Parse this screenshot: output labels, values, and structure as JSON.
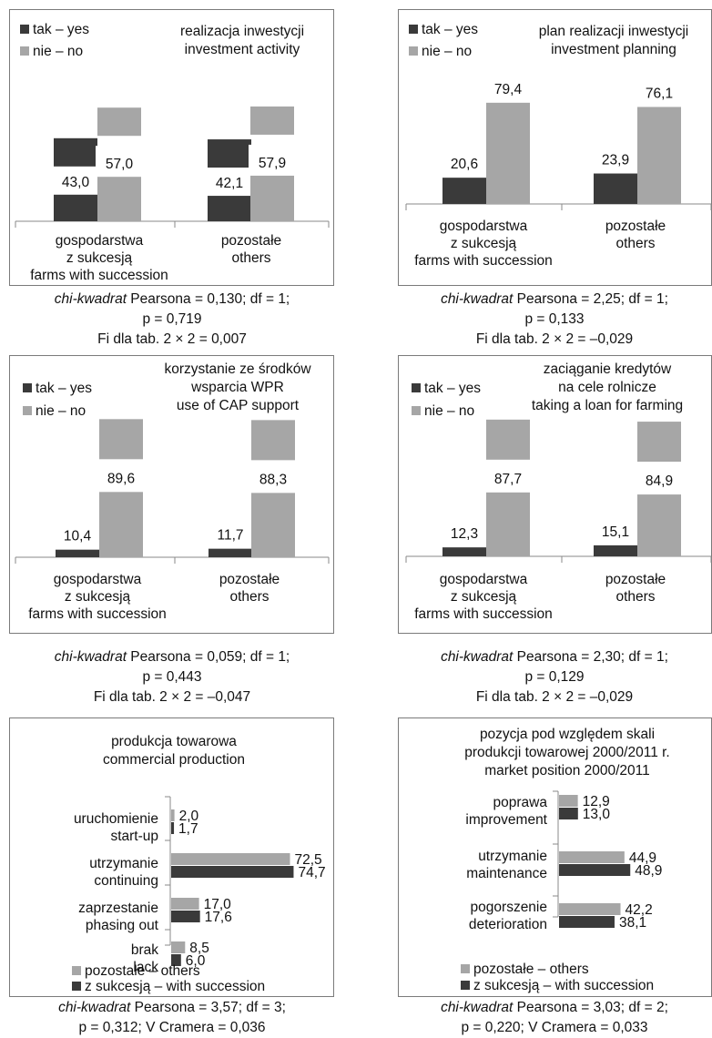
{
  "colors": {
    "yes": "#3a3a3a",
    "no": "#a6a6a6",
    "border": "#7a7a7a"
  },
  "charts": [
    {
      "title": [
        "realizacja inwestycji",
        "investment activity"
      ],
      "legend": [
        "tak – yes",
        "nie – no"
      ],
      "categories": [
        [
          "gospodarstwa",
          "z sukcesją",
          "farms with succession"
        ],
        [
          "pozostałe",
          "others"
        ]
      ],
      "stats": {
        "chi": "chi-kwadrat",
        "line1": " Pearsona = 0,130; df = 1;",
        "line2": "p = 0,719",
        "line3": "Fi dla tab. 2 × 2 = 0,007"
      }
    },
    {
      "title": [
        "plan realizacji inwestycji",
        "investment planning"
      ],
      "legend": [
        "tak – yes",
        "nie – no"
      ],
      "categories": [
        [
          "gospodarstwa",
          "z sukcesją",
          "farms with succession"
        ],
        [
          "pozostałe",
          "others"
        ]
      ],
      "stats": {
        "chi": "chi-kwadrat",
        "line1": " Pearsona = 2,25; df = 1;",
        "line2": "p = 0,133",
        "line3": "Fi dla tab. 2 × 2 = –0,029"
      }
    },
    {
      "title": [
        "korzystanie ze środków",
        "wsparcia WPR",
        "use of CAP support"
      ],
      "legend": [
        "tak – yes",
        "nie – no"
      ],
      "categories": [
        [
          "gospodarstwa",
          "z sukcesją",
          "farms with succession"
        ],
        [
          "pozostałe",
          "others"
        ]
      ],
      "stats": {
        "chi": "chi-kwadrat",
        "line1": " Pearsona = 0,059; df = 1;",
        "line2": "p = 0,443",
        "line3": "Fi dla tab. 2 × 2 = –0,047"
      }
    },
    {
      "title": [
        "zaciąganie kredytów",
        "na cele rolnicze",
        "taking a loan for farming"
      ],
      "legend": [
        "tak – yes",
        "nie – no"
      ],
      "categories": [
        [
          "gospodarstwa",
          "z sukcesją",
          "farms with succession"
        ],
        [
          "pozostałe",
          "others"
        ]
      ],
      "stats": {
        "chi": "chi-kwadrat",
        "line1": " Pearsona = 2,30; df = 1;",
        "line2": "p = 0,129",
        "line3": "Fi dla tab. 2 × 2 = –0,029"
      }
    },
    {
      "title": [
        "produkcja towarowa",
        "commercial production"
      ],
      "legend": [
        "pozostałe – others",
        "z sukcesją – with succession"
      ],
      "categories": [
        [
          "uruchomienie",
          "start-up"
        ],
        [
          "utrzymanie",
          "continuing"
        ],
        [
          "zaprzestanie",
          "phasing out"
        ],
        [
          "brak",
          "lack"
        ]
      ],
      "stats": {
        "chi": "chi-kwadrat",
        "line1": " Pearsona = 3,57; df = 3;",
        "line2": "p = 0,312; V Cramera = 0,036"
      }
    },
    {
      "title": [
        "pozycja pod względem skali",
        "produkcji towarowej 2000/2011 r.",
        "market position 2000/2011"
      ],
      "legend": [
        "pozostałe – others",
        "z sukcesją – with succession"
      ],
      "categories": [
        [
          "poprawa",
          "improvement"
        ],
        [
          "utrzymanie",
          "maintenance"
        ],
        [
          "pogorszenie",
          "deterioration"
        ]
      ],
      "stats": {
        "chi": "chi-kwadrat",
        "line1": " Pearsona = 3,03; df = 2;",
        "line2": "p = 0,220; V Cramera = 0,033"
      }
    }
  ],
  "chart_data": [
    {
      "type": "bar",
      "categories": [
        "gospodarstwa z sukcesją / farms with succession",
        "pozostałe / others"
      ],
      "series": [
        {
          "name": "tak – yes",
          "values": [
            43.0,
            42.1
          ],
          "labels": [
            "43,0",
            "42,1"
          ]
        },
        {
          "name": "nie – no",
          "values": [
            57.0,
            57.9
          ],
          "labels": [
            "57,0",
            "57,9"
          ]
        }
      ]
    },
    {
      "type": "bar",
      "categories": [
        "gospodarstwa z sukcesją / farms with succession",
        "pozostałe / others"
      ],
      "series": [
        {
          "name": "tak – yes",
          "values": [
            20.6,
            23.9
          ],
          "labels": [
            "20,6",
            "23,9"
          ]
        },
        {
          "name": "nie – no",
          "values": [
            79.4,
            76.1
          ],
          "labels": [
            "79,4",
            "76,1"
          ]
        }
      ]
    },
    {
      "type": "bar",
      "categories": [
        "gospodarstwa z sukcesją / farms with succession",
        "pozostałe / others"
      ],
      "series": [
        {
          "name": "tak – yes",
          "values": [
            10.4,
            11.7
          ],
          "labels": [
            "10,4",
            "11,7"
          ]
        },
        {
          "name": "nie – no",
          "values": [
            89.6,
            88.3
          ],
          "labels": [
            "89,6",
            "88,3"
          ]
        }
      ]
    },
    {
      "type": "bar",
      "categories": [
        "gospodarstwa z sukcesją / farms with succession",
        "pozostałe / others"
      ],
      "series": [
        {
          "name": "tak – yes",
          "values": [
            12.3,
            15.1
          ],
          "labels": [
            "12,3",
            "15,1"
          ]
        },
        {
          "name": "nie – no",
          "values": [
            87.7,
            84.9
          ],
          "labels": [
            "87,7",
            "84,9"
          ]
        }
      ]
    },
    {
      "type": "bar",
      "orientation": "horizontal",
      "categories": [
        "uruchomienie / start-up",
        "utrzymanie / continuing",
        "zaprzestanie / phasing out",
        "brak / lack"
      ],
      "series": [
        {
          "name": "pozostałe – others",
          "values": [
            2.0,
            72.5,
            17.0,
            8.5
          ],
          "labels": [
            "2,0",
            "72,5",
            "17,0",
            "8,5"
          ]
        },
        {
          "name": "z sukcesją – with succession",
          "values": [
            1.7,
            74.7,
            17.6,
            6.0
          ],
          "labels": [
            "1,7",
            "74,7",
            "17,6",
            "6,0"
          ]
        }
      ]
    },
    {
      "type": "bar",
      "orientation": "horizontal",
      "categories": [
        "poprawa / improvement",
        "utrzymanie / maintenance",
        "pogorszenie / deterioration"
      ],
      "series": [
        {
          "name": "pozostałe – others",
          "values": [
            12.9,
            44.9,
            42.2
          ],
          "labels": [
            "12,9",
            "44,9",
            "42,2"
          ]
        },
        {
          "name": "z sukcesją – with succession",
          "values": [
            13.0,
            48.9,
            38.1
          ],
          "labels": [
            "13,0",
            "48,9",
            "38,1"
          ]
        }
      ]
    }
  ]
}
